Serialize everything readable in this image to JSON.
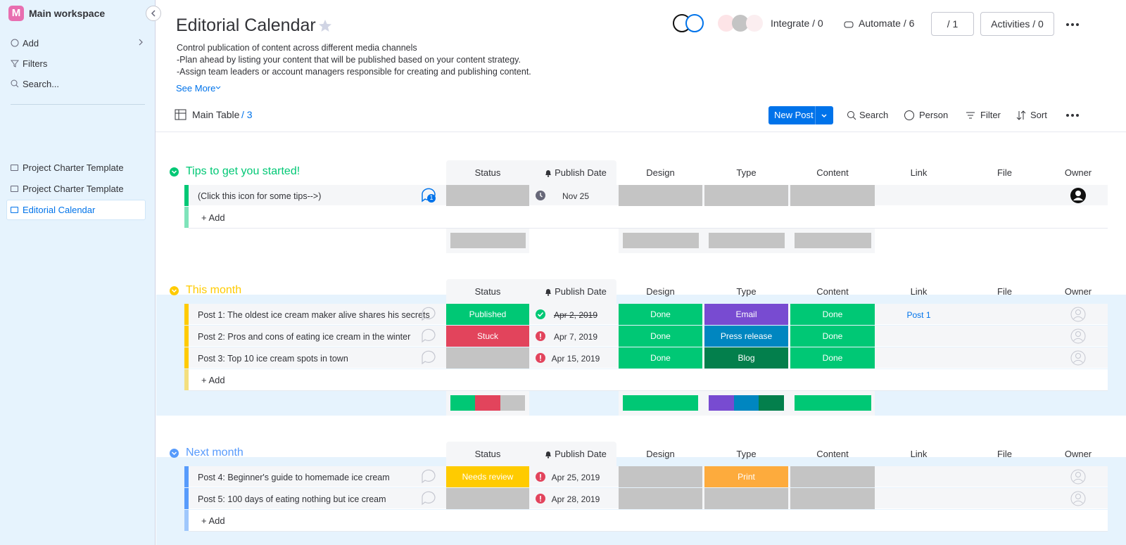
{
  "sidebar": {
    "logo": "M",
    "workspace": "Main workspace",
    "menu": [
      "Add",
      "Filters",
      "Search..."
    ],
    "boards": [
      "Project Charter Template",
      "Project Charter Template",
      "Editorial Calendar"
    ],
    "active_board": 2
  },
  "header": {
    "title": "Editorial Calendar",
    "description": [
      "Control publication of content across different media channels",
      "-Plan ahead by listing your content that will be published based on your content strategy.",
      "-Assign team leaders or account managers responsible for creating and publishing content."
    ],
    "see_more": "See More",
    "integrate": "Integrate / 0",
    "automate": "Automate / 6",
    "members": "/ 1",
    "activities": "Activities / 0"
  },
  "toolbar": {
    "view": "Main Table",
    "view_count": "/ 3",
    "new_post": "New Post",
    "search": "Search",
    "person": "Person",
    "filter": "Filter",
    "sort": "Sort"
  },
  "table": {
    "columns": [
      "Status",
      "Publish Date",
      "Design",
      "Type",
      "Content",
      "Link",
      "File",
      "Owner"
    ],
    "add_label": "+ Add",
    "groups": [
      {
        "title": "Tips to get you started!",
        "color": "#00c875",
        "rows": [
          {
            "name": "(Click this icon for some tips-->)",
            "updates": 1,
            "status": null,
            "date": "Nov 25",
            "date_state": "pending",
            "design": null,
            "type": null,
            "content": null,
            "link": null,
            "owner_assigned": true
          }
        ]
      },
      {
        "title": "This month",
        "color": "#ffcb00",
        "rows": [
          {
            "name": "Post 1: The oldest ice cream maker alive shares his secrets",
            "status": {
              "label": "Published",
              "color": "#00c875"
            },
            "date": "Apr 2, 2019",
            "date_state": "done",
            "design": {
              "label": "Done",
              "color": "#00c875"
            },
            "type": {
              "label": "Email",
              "color": "#784bd1"
            },
            "content": {
              "label": "Done",
              "color": "#00c875"
            },
            "link": "Post 1",
            "owner_assigned": false
          },
          {
            "name": "Post 2: Pros and cons of eating ice cream in the winter",
            "status": {
              "label": "Stuck",
              "color": "#e2445c"
            },
            "date": "Apr 7, 2019",
            "date_state": "overdue",
            "design": {
              "label": "Done",
              "color": "#00c875"
            },
            "type": {
              "label": "Press release",
              "color": "#0086c0"
            },
            "content": {
              "label": "Done",
              "color": "#00c875"
            },
            "link": null,
            "owner_assigned": false
          },
          {
            "name": "Post 3: Top 10 ice cream spots in town",
            "status": null,
            "date": "Apr 15, 2019",
            "date_state": "overdue",
            "design": {
              "label": "Done",
              "color": "#00c875"
            },
            "type": {
              "label": "Blog",
              "color": "#037f4c"
            },
            "content": {
              "label": "Done",
              "color": "#00c875"
            },
            "link": null,
            "owner_assigned": false
          }
        ]
      },
      {
        "title": "Next month",
        "color": "#579bfc",
        "rows": [
          {
            "name": "Post 4: Beginner's guide to homemade ice cream",
            "status": {
              "label": "Needs review",
              "color": "#ffcb00"
            },
            "date": "Apr 25, 2019",
            "date_state": "overdue",
            "design": null,
            "type": {
              "label": "Print",
              "color": "#fdab3d"
            },
            "content": null,
            "link": null,
            "owner_assigned": false
          },
          {
            "name": "Post 5: 100 days of eating nothing but ice cream",
            "status": null,
            "date": "Apr 28, 2019",
            "date_state": "overdue",
            "design": null,
            "type": null,
            "content": null,
            "link": null,
            "owner_assigned": false
          }
        ]
      }
    ]
  }
}
